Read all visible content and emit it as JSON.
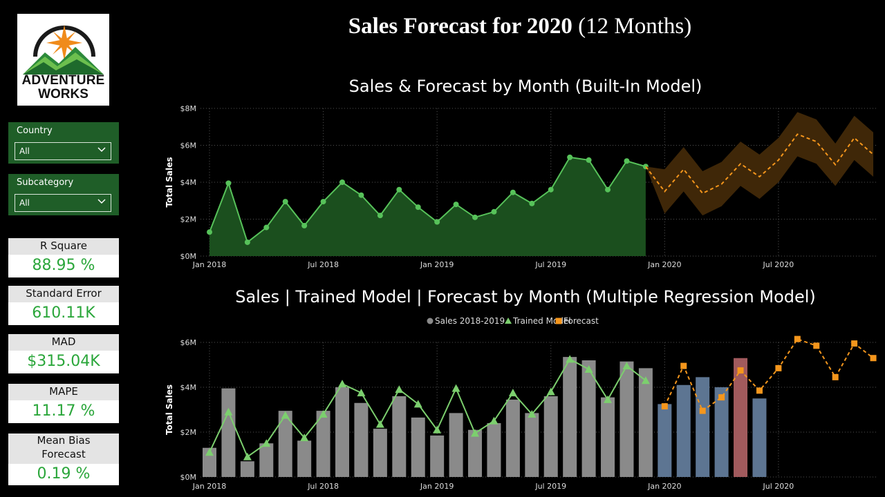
{
  "logo": {
    "line1": "Adventure",
    "line2": "Works"
  },
  "report_title_bold": "Sales Forecast for 2020",
  "report_title_rest": "(12 Months)",
  "filters": [
    {
      "label": "Country",
      "value": "All"
    },
    {
      "label": "Subcategory",
      "value": "All"
    }
  ],
  "metrics": [
    {
      "label": "R Square",
      "value": "88.95 %"
    },
    {
      "label": "Standard Error",
      "value": "610.11K"
    },
    {
      "label": "MAD",
      "value": "$315.04K"
    },
    {
      "label": "MAPE",
      "value": "11.17 %"
    },
    {
      "label": "Mean Bias Forecast",
      "value": "0.19 %"
    }
  ],
  "colors": {
    "green_fill": "#1b4f1e",
    "green_line": "#57c25a",
    "forecast": "#f5961c",
    "band": "#3f2708",
    "bar_gray": "#8a8a8a",
    "bar_blue": "#5d7592",
    "bar_red": "#a15a5d",
    "trained": "#7ccf6e"
  },
  "chart_data": [
    {
      "type": "area",
      "title": "Sales & Forecast by Month (Built-In Model)",
      "ylabel": "Total Sales",
      "xlabel": "",
      "ylim": [
        0,
        8
      ],
      "y_ticks": [
        "$0M",
        "$2M",
        "$4M",
        "$6M",
        "$8M"
      ],
      "x_ticks": [
        "Jan 2018",
        "Jul 2018",
        "Jan 2019",
        "Jul 2019",
        "Jan 2020",
        "Jul 2020"
      ],
      "x": [
        "2018-01",
        "2018-02",
        "2018-03",
        "2018-04",
        "2018-05",
        "2018-06",
        "2018-07",
        "2018-08",
        "2018-09",
        "2018-10",
        "2018-11",
        "2018-12",
        "2019-01",
        "2019-02",
        "2019-03",
        "2019-04",
        "2019-05",
        "2019-06",
        "2019-07",
        "2019-08",
        "2019-09",
        "2019-10",
        "2019-11",
        "2019-12"
      ],
      "sales": [
        1.3,
        3.95,
        0.75,
        1.55,
        2.95,
        1.65,
        2.95,
        4.0,
        3.3,
        2.2,
        3.6,
        2.65,
        1.85,
        2.8,
        2.1,
        2.4,
        3.45,
        2.85,
        3.6,
        5.35,
        5.2,
        3.6,
        5.15,
        4.85
      ],
      "forecast_x": [
        "2019-12",
        "2020-01",
        "2020-02",
        "2020-03",
        "2020-04",
        "2020-05",
        "2020-06",
        "2020-07",
        "2020-08",
        "2020-09",
        "2020-10",
        "2020-11",
        "2020-12"
      ],
      "forecast": [
        4.85,
        3.5,
        4.7,
        3.4,
        3.9,
        5.0,
        4.3,
        5.2,
        6.6,
        6.2,
        4.95,
        6.4,
        5.5
      ],
      "forecast_upper": [
        4.85,
        4.7,
        5.9,
        4.6,
        5.1,
        6.2,
        5.5,
        6.4,
        7.8,
        7.4,
        6.1,
        7.6,
        6.7
      ],
      "forecast_lower": [
        4.85,
        2.3,
        3.5,
        2.2,
        2.7,
        3.8,
        3.1,
        4.0,
        5.4,
        5.0,
        3.8,
        5.2,
        4.3
      ]
    },
    {
      "type": "bar",
      "title": "Sales | Trained Model | Forecast by Month (Multiple Regression Model)",
      "ylabel": "Total Sales",
      "xlabel": "",
      "ylim": [
        0,
        6
      ],
      "y_ticks": [
        "$0M",
        "$2M",
        "$4M",
        "$6M"
      ],
      "x_ticks": [
        "Jan 2018",
        "Jul 2018",
        "Jan 2019",
        "Jul 2019",
        "Jan 2020",
        "Jul 2020"
      ],
      "legend": [
        "Sales 2018-2019",
        "Trained Model",
        "Forecast"
      ],
      "legend_position": "top",
      "x": [
        "2018-01",
        "2018-02",
        "2018-03",
        "2018-04",
        "2018-05",
        "2018-06",
        "2018-07",
        "2018-08",
        "2018-09",
        "2018-10",
        "2018-11",
        "2018-12",
        "2019-01",
        "2019-02",
        "2019-03",
        "2019-04",
        "2019-05",
        "2019-06",
        "2019-07",
        "2019-08",
        "2019-09",
        "2019-10",
        "2019-11",
        "2019-12",
        "2020-01",
        "2020-02",
        "2020-03",
        "2020-04",
        "2020-05",
        "2020-06",
        "2020-07",
        "2020-08",
        "2020-09",
        "2020-10",
        "2020-11",
        "2020-12"
      ],
      "sales": [
        1.3,
        3.95,
        0.7,
        1.5,
        2.95,
        1.62,
        2.95,
        4.0,
        3.3,
        2.15,
        3.6,
        2.65,
        1.85,
        2.85,
        2.1,
        2.4,
        3.45,
        2.85,
        3.6,
        5.35,
        5.2,
        3.55,
        5.15,
        4.85,
        3.25,
        4.1,
        4.45,
        4.0,
        5.3,
        3.5,
        null,
        null,
        null,
        null,
        null,
        null
      ],
      "bar_color": [
        "gray",
        "gray",
        "gray",
        "gray",
        "gray",
        "gray",
        "gray",
        "gray",
        "gray",
        "gray",
        "gray",
        "gray",
        "gray",
        "gray",
        "gray",
        "gray",
        "gray",
        "gray",
        "gray",
        "gray",
        "gray",
        "gray",
        "gray",
        "gray",
        "blue",
        "blue",
        "blue",
        "blue",
        "red",
        "blue",
        "gray",
        "gray",
        "gray",
        "gray",
        "gray",
        "gray"
      ],
      "trained": [
        1.1,
        2.9,
        0.9,
        1.5,
        2.75,
        1.75,
        2.8,
        4.15,
        3.75,
        2.35,
        3.9,
        3.25,
        2.1,
        3.95,
        1.95,
        2.5,
        3.75,
        2.8,
        3.8,
        5.25,
        4.8,
        3.45,
        4.95,
        4.3,
        null,
        null,
        null,
        null,
        null,
        null,
        null,
        null,
        null,
        null,
        null,
        null
      ],
      "forecast": [
        null,
        null,
        null,
        null,
        null,
        null,
        null,
        null,
        null,
        null,
        null,
        null,
        null,
        null,
        null,
        null,
        null,
        null,
        null,
        null,
        null,
        null,
        null,
        null,
        3.15,
        4.95,
        2.95,
        3.55,
        4.75,
        3.85,
        4.85,
        6.15,
        5.85,
        4.45,
        5.95,
        5.3
      ]
    }
  ]
}
